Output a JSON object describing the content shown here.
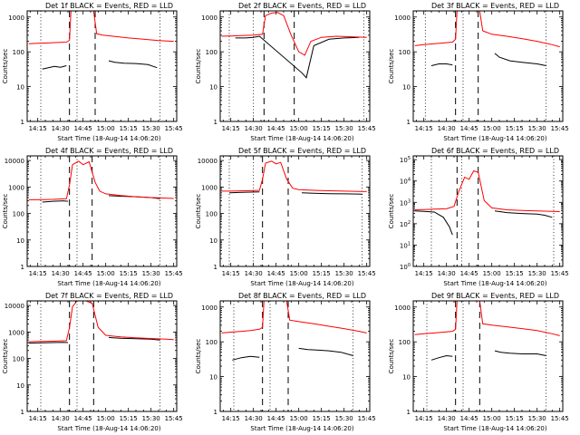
{
  "chart_data": [
    {
      "type": "line",
      "title": "Det 1f BLACK = Events, RED = LLD",
      "ylabel": "Counts/sec",
      "xlabel": "Start Time (18-Aug-14 14:06:20)",
      "yscale": "log",
      "ylim": [
        1,
        1500
      ],
      "yticks": [
        1,
        10,
        100,
        1000
      ],
      "ytick_labels": [
        "1",
        "10",
        "100",
        "1000"
      ],
      "xlim": [
        "14:08",
        "15:47"
      ],
      "xtick_labels": [
        "14:15",
        "14:30",
        "14:45",
        "15:00",
        "15:15",
        "15:30",
        "15:45"
      ],
      "dashed_lines": [
        "14:36",
        "14:53"
      ],
      "dotted_lines": [
        "14:17",
        "14:41",
        "15:36"
      ],
      "series": [
        {
          "color": "#000000",
          "x": [
            "14:18",
            "14:22",
            "14:26",
            "14:30",
            "14:34"
          ],
          "y": [
            32,
            35,
            38,
            36,
            40
          ]
        },
        {
          "color": "#000000",
          "x": [
            "15:02",
            "15:06",
            "15:12",
            "15:20",
            "15:28",
            "15:34"
          ],
          "y": [
            55,
            50,
            47,
            46,
            43,
            35
          ]
        },
        {
          "color": "#ff0000",
          "x": [
            "14:09",
            "14:15",
            "14:22",
            "14:28",
            "14:34",
            "14:36",
            "14:37",
            "14:52",
            "14:54",
            "14:58",
            "15:05",
            "15:15",
            "15:25",
            "15:35",
            "15:45"
          ],
          "y": [
            170,
            175,
            180,
            185,
            190,
            215,
            1500,
            1500,
            330,
            300,
            280,
            250,
            230,
            210,
            200
          ]
        }
      ]
    },
    {
      "type": "line",
      "title": "Det 2f BLACK = Events, RED = LLD",
      "ylabel": "Counts/sec",
      "xlabel": "Start Time (18-Aug-14 14:06:20)",
      "yscale": "log",
      "ylim": [
        1,
        1500
      ],
      "yticks": [
        1,
        10,
        100,
        1000
      ],
      "ytick_labels": [
        "1",
        "10",
        "100",
        "1000"
      ],
      "xlim": [
        "14:08",
        "15:47"
      ],
      "xtick_labels": [
        "14:15",
        "14:30",
        "14:45",
        "15:00",
        "15:15",
        "15:30",
        "15:45"
      ],
      "dashed_lines": [
        "14:37",
        "14:57"
      ],
      "dotted_lines": [
        "14:14",
        "14:30",
        "15:43"
      ],
      "series": [
        {
          "color": "#000000",
          "x": [
            "14:18",
            "14:25",
            "14:30",
            "14:34",
            "15:02",
            "15:05",
            "15:10",
            "15:20",
            "15:30",
            "15:40"
          ],
          "y": [
            250,
            250,
            260,
            280,
            25,
            18,
            150,
            230,
            250,
            260
          ]
        },
        {
          "color": "#ff0000",
          "x": [
            "14:09",
            "14:20",
            "14:30",
            "14:36",
            "14:38",
            "14:42",
            "14:46",
            "14:50",
            "14:55",
            "15:00",
            "15:04",
            "15:08",
            "15:15",
            "15:25",
            "15:35",
            "15:45"
          ],
          "y": [
            280,
            290,
            300,
            320,
            1100,
            1300,
            1350,
            1100,
            300,
            100,
            80,
            200,
            260,
            280,
            270,
            260
          ]
        }
      ]
    },
    {
      "type": "line",
      "title": "Det 3f BLACK = Events, RED = LLD",
      "ylabel": "Counts/sec",
      "xlabel": "Start Time (18-Aug-14 14:06:20)",
      "yscale": "log",
      "ylim": [
        1,
        1500
      ],
      "yticks": [
        1,
        10,
        100,
        1000
      ],
      "ytick_labels": [
        "1",
        "10",
        "100",
        "1000"
      ],
      "xlim": [
        "14:08",
        "15:47"
      ],
      "xtick_labels": [
        "14:15",
        "14:30",
        "14:45",
        "15:00",
        "15:15",
        "15:30",
        "15:45"
      ],
      "dashed_lines": [
        "14:36",
        "14:51"
      ],
      "dotted_lines": [
        "14:16",
        "14:41",
        "15:36"
      ],
      "series": [
        {
          "color": "#000000",
          "x": [
            "14:20",
            "14:25",
            "14:30",
            "14:34"
          ],
          "y": [
            40,
            45,
            45,
            42
          ]
        },
        {
          "color": "#000000",
          "x": [
            "15:02",
            "15:05",
            "15:12",
            "15:20",
            "15:30",
            "15:36"
          ],
          "y": [
            90,
            70,
            55,
            50,
            45,
            40
          ]
        },
        {
          "color": "#ff0000",
          "x": [
            "14:09",
            "14:15",
            "14:22",
            "14:28",
            "14:34",
            "14:36",
            "14:37",
            "14:52",
            "14:54",
            "15:00",
            "15:10",
            "15:20",
            "15:30",
            "15:40",
            "15:45"
          ],
          "y": [
            150,
            160,
            170,
            180,
            190,
            230,
            1500,
            1500,
            400,
            320,
            280,
            240,
            200,
            160,
            140
          ]
        }
      ]
    },
    {
      "type": "line",
      "title": "Det 4f BLACK = Events, RED = LLD",
      "ylabel": "Counts/sec",
      "xlabel": "Start Time (18-Aug-14 14:06:20)",
      "yscale": "log",
      "ylim": [
        1,
        15000
      ],
      "yticks": [
        1,
        10,
        100,
        1000,
        10000
      ],
      "ytick_labels": [
        "1",
        "10",
        "100",
        "1000",
        "10000"
      ],
      "xlim": [
        "14:08",
        "15:47"
      ],
      "xtick_labels": [
        "14:15",
        "14:30",
        "14:45",
        "15:00",
        "15:15",
        "15:30",
        "15:45"
      ],
      "dashed_lines": [
        "14:36",
        "14:51"
      ],
      "dotted_lines": [
        "14:17",
        "14:41",
        "15:36"
      ],
      "series": [
        {
          "color": "#000000",
          "x": [
            "14:18",
            "14:25",
            "14:32",
            "14:35"
          ],
          "y": [
            270,
            290,
            300,
            290
          ]
        },
        {
          "color": "#000000",
          "x": [
            "15:02",
            "15:10",
            "15:20",
            "15:30",
            "15:36"
          ],
          "y": [
            470,
            450,
            430,
            400,
            360
          ]
        },
        {
          "color": "#ff0000",
          "x": [
            "14:09",
            "14:15",
            "14:25",
            "14:34",
            "14:36",
            "14:38",
            "14:42",
            "14:45",
            "14:49",
            "14:53",
            "14:56",
            "15:00",
            "15:10",
            "15:20",
            "15:30",
            "15:40",
            "15:45"
          ],
          "y": [
            330,
            330,
            340,
            360,
            1200,
            7000,
            9500,
            7000,
            9000,
            1500,
            700,
            550,
            480,
            430,
            400,
            380,
            370
          ]
        }
      ]
    },
    {
      "type": "line",
      "title": "Det 5f BLACK = Events, RED = LLD",
      "ylabel": "Counts/sec",
      "xlabel": "Start Time (18-Aug-14 14:06:20)",
      "yscale": "log",
      "ylim": [
        1,
        15000
      ],
      "yticks": [
        1,
        10,
        100,
        1000,
        10000
      ],
      "ytick_labels": [
        "1",
        "10",
        "100",
        "1000",
        "10000"
      ],
      "xlim": [
        "14:08",
        "15:47"
      ],
      "xtick_labels": [
        "14:15",
        "14:30",
        "14:45",
        "15:00",
        "15:15",
        "15:30",
        "15:45"
      ],
      "dashed_lines": [
        "14:36",
        "14:53"
      ],
      "dotted_lines": [
        "14:14",
        "14:30",
        "15:42"
      ],
      "series": [
        {
          "color": "#000000",
          "x": [
            "14:14",
            "14:20",
            "14:28",
            "14:34"
          ],
          "y": [
            600,
            620,
            640,
            650
          ]
        },
        {
          "color": "#000000",
          "x": [
            "15:02",
            "15:10",
            "15:20",
            "15:30",
            "15:42"
          ],
          "y": [
            600,
            580,
            560,
            550,
            540
          ]
        },
        {
          "color": "#ff0000",
          "x": [
            "14:09",
            "14:15",
            "14:25",
            "14:34",
            "14:36",
            "14:38",
            "14:42",
            "14:45",
            "14:48",
            "14:52",
            "14:56",
            "15:00",
            "15:10",
            "15:20",
            "15:30",
            "15:40",
            "15:45"
          ],
          "y": [
            700,
            700,
            720,
            750,
            2000,
            8000,
            9500,
            7500,
            8500,
            2000,
            900,
            800,
            750,
            720,
            700,
            680,
            670
          ]
        }
      ]
    },
    {
      "type": "line",
      "title": "Det 6f BLACK = Events, RED = LLD",
      "ylabel": "Counts/sec",
      "xlabel": "Start Time (18-Aug-14 14:06:20)",
      "yscale": "log",
      "ylim": [
        1,
        150000
      ],
      "yticks": [
        1,
        10,
        100,
        1000,
        10000,
        100000
      ],
      "ytick_labels": [
        "10^0",
        "10^1",
        "10^2",
        "10^3",
        "10^4",
        "10^5"
      ],
      "xlim": [
        "14:08",
        "15:47"
      ],
      "xtick_labels": [
        "14:15",
        "14:30",
        "14:45",
        "15:00",
        "15:15",
        "15:30",
        "15:45"
      ],
      "dashed_lines": [
        "14:37",
        "14:51"
      ],
      "dotted_lines": [
        "14:20",
        "14:40",
        "15:41"
      ],
      "series": [
        {
          "color": "#000000",
          "x": [
            "14:09",
            "14:15",
            "14:22",
            "14:28",
            "14:32",
            "14:34"
          ],
          "y": [
            400,
            380,
            350,
            200,
            70,
            30
          ]
        },
        {
          "color": "#000000",
          "x": [
            "15:02",
            "15:10",
            "15:20",
            "15:30",
            "15:35",
            "15:40"
          ],
          "y": [
            400,
            330,
            300,
            280,
            250,
            200
          ]
        },
        {
          "color": "#ff0000",
          "x": [
            "14:09",
            "14:15",
            "14:22",
            "14:30",
            "14:35",
            "14:38",
            "14:42",
            "14:45",
            "14:48",
            "14:51",
            "14:55",
            "15:00",
            "15:10",
            "15:20",
            "15:30",
            "15:40",
            "15:45"
          ],
          "y": [
            450,
            460,
            480,
            500,
            650,
            3000,
            15000,
            12000,
            30000,
            25000,
            1200,
            550,
            450,
            420,
            400,
            380,
            370
          ]
        }
      ]
    },
    {
      "type": "line",
      "title": "Det 7f BLACK = Events, RED = LLD",
      "ylabel": "Counts/sec",
      "xlabel": "Start Time (18-Aug-14 14:06:20)",
      "yscale": "log",
      "ylim": [
        1,
        15000
      ],
      "yticks": [
        1,
        10,
        100,
        1000,
        10000
      ],
      "ytick_labels": [
        "1",
        "10",
        "100",
        "1000",
        "10000"
      ],
      "xlim": [
        "14:08",
        "15:47"
      ],
      "xtick_labels": [
        "14:15",
        "14:30",
        "14:45",
        "15:00",
        "15:15",
        "15:30",
        "15:45"
      ],
      "dashed_lines": [
        "14:36",
        "14:52"
      ],
      "dotted_lines": [
        "14:17",
        "14:41",
        "15:36"
      ],
      "series": [
        {
          "color": "#000000",
          "x": [
            "14:09",
            "14:18",
            "14:25",
            "14:32",
            "14:35"
          ],
          "y": [
            380,
            390,
            400,
            410,
            400
          ]
        },
        {
          "color": "#000000",
          "x": [
            "15:02",
            "15:10",
            "15:20",
            "15:30",
            "15:36"
          ],
          "y": [
            620,
            580,
            560,
            540,
            500
          ]
        },
        {
          "color": "#ff0000",
          "x": [
            "14:09",
            "14:15",
            "14:25",
            "14:34",
            "14:36",
            "14:38",
            "14:41",
            "14:47",
            "14:51",
            "14:55",
            "15:00",
            "15:10",
            "15:20",
            "15:30",
            "15:40",
            "15:45"
          ],
          "y": [
            430,
            440,
            450,
            470,
            1500,
            9000,
            15000,
            15000,
            12000,
            1500,
            750,
            650,
            600,
            570,
            540,
            520
          ]
        }
      ]
    },
    {
      "type": "line",
      "title": "Det 8f BLACK = Events, RED = LLD",
      "ylabel": "Counts/sec",
      "xlabel": "Start Time (18-Aug-14 14:06:20)",
      "yscale": "log",
      "ylim": [
        1,
        1500
      ],
      "yticks": [
        1,
        10,
        100,
        1000
      ],
      "ytick_labels": [
        "1",
        "10",
        "100",
        "1000"
      ],
      "xlim": [
        "14:08",
        "15:47"
      ],
      "xtick_labels": [
        "14:15",
        "14:30",
        "14:45",
        "15:00",
        "15:15",
        "15:30",
        "15:45"
      ],
      "dashed_lines": [
        "14:36",
        "14:53"
      ],
      "dotted_lines": [
        "14:17",
        "14:41",
        "15:36"
      ],
      "series": [
        {
          "color": "#000000",
          "x": [
            "14:16",
            "14:22",
            "14:28",
            "14:34"
          ],
          "y": [
            30,
            35,
            38,
            36
          ]
        },
        {
          "color": "#000000",
          "x": [
            "15:00",
            "15:06",
            "15:12",
            "15:20",
            "15:28",
            "15:36"
          ],
          "y": [
            65,
            60,
            58,
            55,
            50,
            40
          ]
        },
        {
          "color": "#ff0000",
          "x": [
            "14:09",
            "14:15",
            "14:22",
            "14:28",
            "14:34",
            "14:36",
            "14:37",
            "14:52",
            "14:54",
            "15:00",
            "15:10",
            "15:20",
            "15:30",
            "15:40",
            "15:45"
          ],
          "y": [
            180,
            190,
            200,
            210,
            230,
            260,
            1500,
            1500,
            420,
            380,
            330,
            280,
            240,
            200,
            180
          ]
        }
      ]
    },
    {
      "type": "line",
      "title": "Det 9f BLACK = Events, RED = LLD",
      "ylabel": "Counts/sec",
      "xlabel": "Start Time (18-Aug-14 14:06:20)",
      "yscale": "log",
      "ylim": [
        1,
        1500
      ],
      "yticks": [
        1,
        10,
        100,
        1000
      ],
      "ytick_labels": [
        "1",
        "10",
        "100",
        "1000"
      ],
      "xlim": [
        "14:08",
        "15:47"
      ],
      "xtick_labels": [
        "14:15",
        "14:30",
        "14:45",
        "15:00",
        "15:15",
        "15:30",
        "15:45"
      ],
      "dashed_lines": [
        "14:36",
        "14:52"
      ],
      "dotted_lines": [
        "14:17",
        "14:41",
        "15:36"
      ],
      "series": [
        {
          "color": "#000000",
          "x": [
            "14:20",
            "14:25",
            "14:30",
            "14:34"
          ],
          "y": [
            30,
            35,
            40,
            38
          ]
        },
        {
          "color": "#000000",
          "x": [
            "15:02",
            "15:06",
            "15:12",
            "15:20",
            "15:30",
            "15:36"
          ],
          "y": [
            55,
            50,
            47,
            45,
            45,
            40
          ]
        },
        {
          "color": "#ff0000",
          "x": [
            "14:09",
            "14:15",
            "14:22",
            "14:28",
            "14:34",
            "14:36",
            "14:37",
            "14:52",
            "14:54",
            "15:00",
            "15:10",
            "15:20",
            "15:30",
            "15:40",
            "15:45"
          ],
          "y": [
            160,
            170,
            180,
            190,
            200,
            230,
            1500,
            1500,
            330,
            300,
            270,
            240,
            210,
            170,
            150
          ]
        }
      ]
    }
  ]
}
